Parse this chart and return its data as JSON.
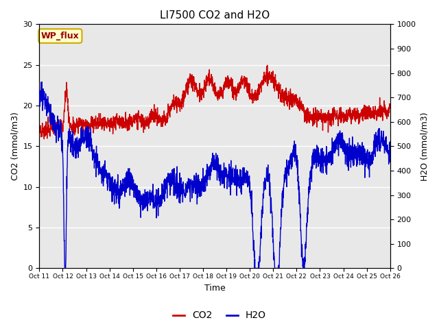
{
  "title": "LI7500 CO2 and H2O",
  "xlabel": "Time",
  "ylabel_left": "CO2 (mmol/m3)",
  "ylabel_right": "H2O (mmol/m3)",
  "ylim_left": [
    0,
    30
  ],
  "ylim_right": [
    0,
    1000
  ],
  "yticks_left": [
    0,
    5,
    10,
    15,
    20,
    25,
    30
  ],
  "yticks_right": [
    0,
    100,
    200,
    300,
    400,
    500,
    600,
    700,
    800,
    900,
    1000
  ],
  "xtick_labels": [
    "Oct 11",
    "Oct 12",
    "Oct 13",
    "Oct 14",
    "Oct 15",
    "Oct 16",
    "Oct 17",
    "Oct 18",
    "Oct 19",
    "Oct 20",
    "Oct 21",
    "Oct 22",
    "Oct 23",
    "Oct 24",
    "Oct 25",
    "Oct 26"
  ],
  "co2_color": "#cc0000",
  "h2o_color": "#0000cc",
  "bg_color": "#e8e8e8",
  "fig_bg": "#ffffff",
  "annotation_text": "WP_flux",
  "annotation_bg": "#ffffcc",
  "annotation_border": "#ccaa00",
  "legend_co2": "CO2",
  "legend_h2o": "H2O",
  "linewidth": 1.0,
  "title_fontsize": 11,
  "label_fontsize": 9,
  "tick_fontsize": 8
}
